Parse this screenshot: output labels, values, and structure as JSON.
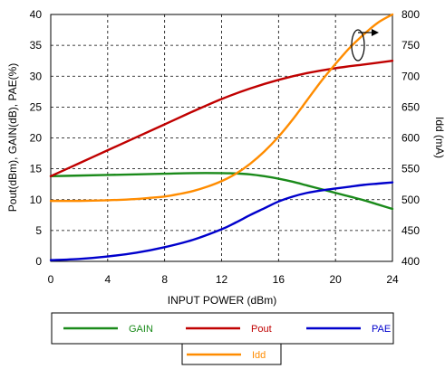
{
  "chart_data": {
    "type": "line",
    "xlabel": "INPUT POWER (dBm)",
    "ylabel": "Pout(dBm), GAIN(dB), PAE(%)",
    "y2label": "Idd (mA)",
    "xlim": [
      0,
      24
    ],
    "ylim": [
      0,
      40
    ],
    "y2lim": [
      400,
      800
    ],
    "x_ticks": [
      0,
      4,
      8,
      12,
      16,
      20,
      24
    ],
    "y_ticks": [
      0,
      5,
      10,
      15,
      20,
      25,
      30,
      35,
      40
    ],
    "y2_ticks": [
      400,
      450,
      500,
      550,
      600,
      650,
      700,
      750,
      800
    ],
    "grid": true,
    "legend_position": "bottom",
    "series": [
      {
        "name": "GAIN",
        "axis": "left",
        "color": "#1a8a1a",
        "x": [
          0,
          2,
          4,
          6,
          8,
          10,
          12,
          13,
          14,
          15,
          16,
          17,
          18,
          19,
          20,
          21,
          22,
          23,
          24
        ],
        "y": [
          13.8,
          13.9,
          14.0,
          14.1,
          14.2,
          14.3,
          14.3,
          14.25,
          14.1,
          13.8,
          13.4,
          12.9,
          12.3,
          11.7,
          11.1,
          10.5,
          9.9,
          9.2,
          8.5
        ]
      },
      {
        "name": "Pout",
        "axis": "left",
        "color": "#c00000",
        "x": [
          0,
          2,
          4,
          6,
          8,
          10,
          12,
          14,
          16,
          18,
          20,
          22,
          24
        ],
        "y": [
          13.8,
          15.9,
          18.0,
          20.1,
          22.2,
          24.3,
          26.3,
          28.0,
          29.4,
          30.5,
          31.3,
          31.9,
          32.5
        ]
      },
      {
        "name": "PAE",
        "axis": "left",
        "color": "#0000cc",
        "x": [
          0,
          2,
          4,
          6,
          8,
          10,
          12,
          13,
          14,
          15,
          16,
          17,
          18,
          19,
          20,
          21,
          22,
          23,
          24
        ],
        "y": [
          0.2,
          0.4,
          0.8,
          1.4,
          2.3,
          3.5,
          5.2,
          6.3,
          7.5,
          8.6,
          9.7,
          10.5,
          11.1,
          11.5,
          11.8,
          12.1,
          12.4,
          12.6,
          12.8
        ]
      },
      {
        "name": "Idd",
        "axis": "right",
        "color": "#ff8c00",
        "x": [
          0,
          2,
          4,
          6,
          7,
          8,
          9,
          10,
          11,
          12,
          13,
          14,
          15,
          16,
          17,
          18,
          19,
          20,
          21,
          22,
          23,
          24
        ],
        "y": [
          498,
          498,
          499,
          501,
          503,
          505,
          509,
          514,
          521,
          530,
          542,
          558,
          578,
          602,
          630,
          661,
          692,
          720,
          746,
          768,
          787,
          800
        ]
      }
    ],
    "annotation": "arrow-loop pointing toward right axis (Idd)"
  }
}
